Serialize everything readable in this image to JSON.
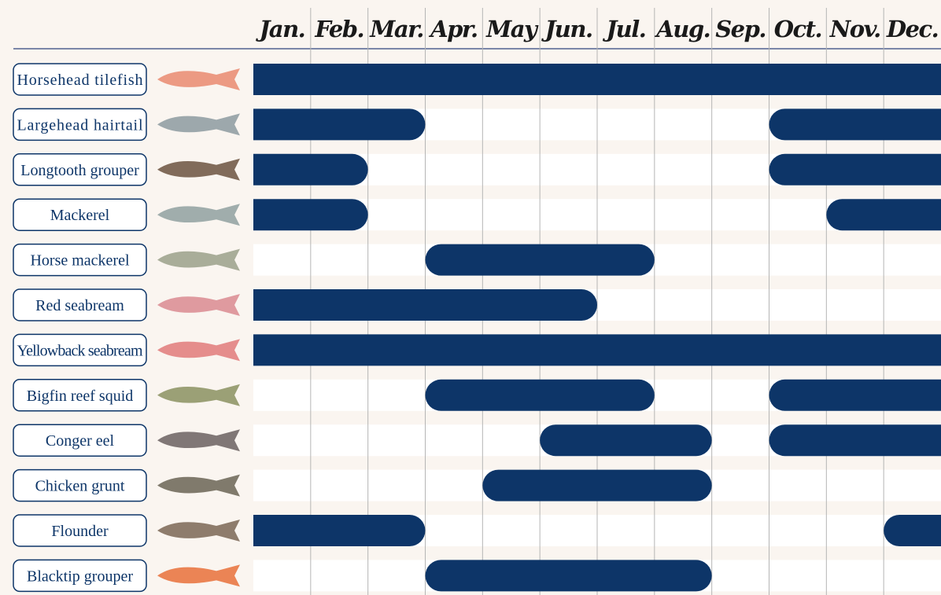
{
  "chart_data": {
    "type": "timeline",
    "color": "#0d3568",
    "months": [
      "Jan.",
      "Feb.",
      "Mar.",
      "Apr.",
      "May",
      "Jun.",
      "Jul.",
      "Aug.",
      "Sep.",
      "Oct.",
      "Nov.",
      "Dec."
    ],
    "rows": [
      {
        "name": "Horsehead tilefish",
        "values": [
          1,
          1,
          1,
          1,
          1,
          1,
          1,
          1,
          1,
          1,
          1,
          1
        ]
      },
      {
        "name": "Largehead hairtail",
        "values": [
          1,
          1,
          1,
          0,
          0,
          0,
          0,
          0,
          0,
          1,
          1,
          1
        ]
      },
      {
        "name": "Longtooth grouper",
        "values": [
          1,
          1,
          0,
          0,
          0,
          0,
          0,
          0,
          0,
          1,
          1,
          1
        ]
      },
      {
        "name": "Mackerel",
        "values": [
          1,
          1,
          0,
          0,
          0,
          0,
          0,
          0,
          0,
          0,
          1,
          1
        ]
      },
      {
        "name": "Horse mackerel",
        "values": [
          0,
          0,
          0,
          1,
          1,
          1,
          1,
          0,
          0,
          0,
          0,
          0
        ]
      },
      {
        "name": "Red seabream",
        "values": [
          1,
          1,
          1,
          1,
          1,
          1,
          0,
          0,
          0,
          0,
          0,
          0
        ]
      },
      {
        "name": "Yellowback seabream",
        "values": [
          1,
          1,
          1,
          1,
          1,
          1,
          1,
          1,
          1,
          1,
          1,
          1
        ]
      },
      {
        "name": "Bigfin reef squid",
        "values": [
          0,
          0,
          0,
          1,
          1,
          1,
          1,
          0,
          0,
          1,
          1,
          1
        ]
      },
      {
        "name": "Conger eel",
        "values": [
          0,
          0,
          0,
          0,
          0,
          1,
          1,
          1,
          0,
          1,
          1,
          1
        ]
      },
      {
        "name": "Chicken grunt",
        "values": [
          0,
          0,
          0,
          0,
          1,
          1,
          1,
          1,
          0,
          0,
          0,
          0
        ]
      },
      {
        "name": "Flounder",
        "values": [
          1,
          1,
          1,
          0,
          0,
          0,
          0,
          0,
          0,
          0,
          0,
          1
        ]
      },
      {
        "name": "Blacktip grouper",
        "values": [
          0,
          0,
          0,
          1,
          1,
          1,
          1,
          1,
          0,
          0,
          0,
          0
        ]
      }
    ]
  }
}
